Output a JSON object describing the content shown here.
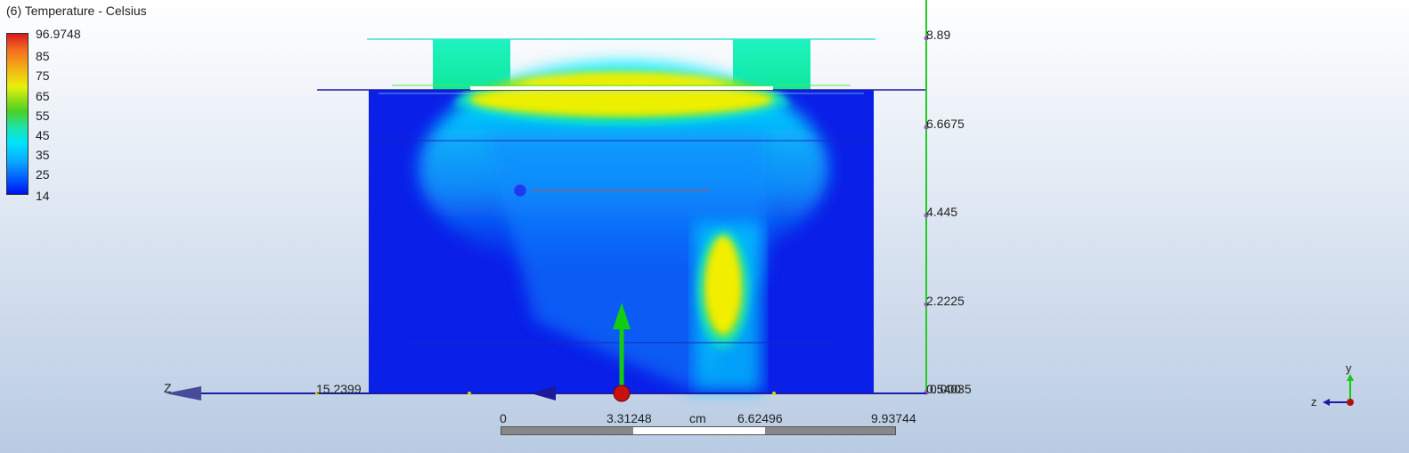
{
  "legend": {
    "title": "(6) Temperature - Celsius",
    "max_label": "96.9748",
    "labels": [
      "85",
      "75",
      "65",
      "55",
      "45",
      "35",
      "25"
    ],
    "min_label": "14"
  },
  "y_axis": {
    "ticks": [
      "8.89",
      "6.6675",
      "4.445",
      "2.2225",
      "0.000"
    ],
    "overlap_labels": [
      "0.54035",
      "0.000"
    ]
  },
  "z_axis": {
    "label": "Z",
    "tick": "15.2399"
  },
  "scale": {
    "ticks": [
      "0",
      "3.31248",
      "6.62496",
      "9.93744"
    ],
    "unit": "cm"
  },
  "triad": {
    "y": "y",
    "z": "z"
  },
  "colors": {
    "axis_green": "#22cc22",
    "axis_blue": "#1b1ba8",
    "cold": "#0a1fe8",
    "hot": "#ff2a00"
  }
}
